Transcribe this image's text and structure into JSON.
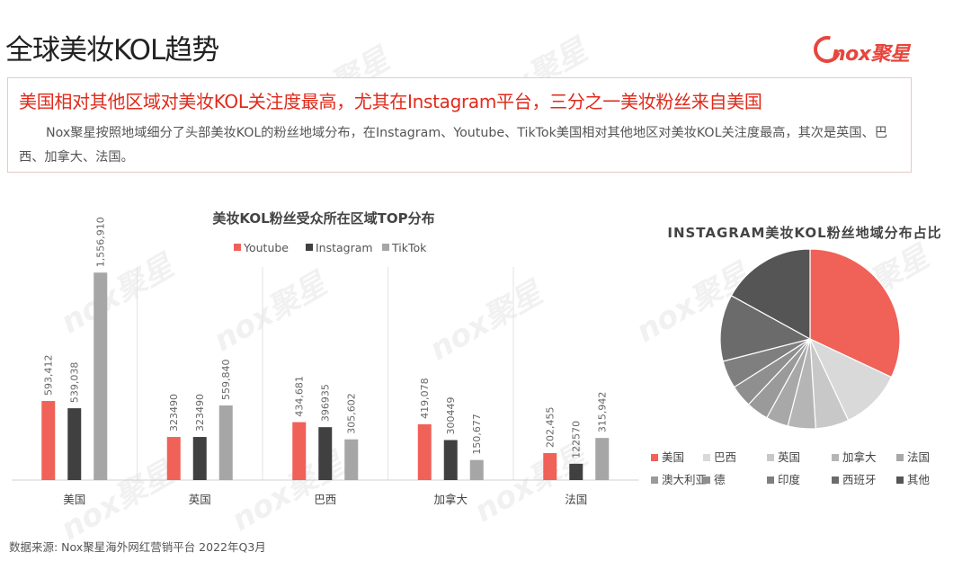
{
  "page": {
    "title": "全球美妆KOL趋势",
    "logo_text": "nox聚星",
    "watermark_text": "nox聚星"
  },
  "info": {
    "headline": "美国相对其他区域对美妆KOL关注度最高，尤其在Instagram平台，三分之一美妆粉丝来自美国",
    "description": "Nox聚星按照地域细分了头部美妆KOL的粉丝地域分布，在Instagram、Youtube、TikTok美国相对其他地区对美妆KOL关注度最高，其次是英国、巴西、加拿大、法国。"
  },
  "source": "数据来源: Nox聚星海外网红营销平台 2022年Q3月",
  "chart_data": [
    {
      "type": "bar",
      "title": "美妆KOL粉丝受众所在区域TOP分布",
      "categories": [
        "美国",
        "英国",
        "巴西",
        "加拿大",
        "法国"
      ],
      "series": [
        {
          "name": "Youtube",
          "color": "#f06158",
          "values": [
            593412,
            323490,
            434681,
            419078,
            202455
          ],
          "labels": [
            "593,412",
            "323490",
            "434,681",
            "419,078",
            "202,455"
          ]
        },
        {
          "name": "Instagram",
          "color": "#404040",
          "values": [
            539038,
            323490,
            396935,
            300449,
            122570
          ],
          "labels": [
            "539,038",
            "323490",
            "396935",
            "300449",
            "122570"
          ]
        },
        {
          "name": "TikTok",
          "color": "#a6a6a6",
          "values": [
            1556910,
            559840,
            305602,
            150677,
            315942
          ],
          "labels": [
            "1,556,910",
            "559,840",
            "305,602",
            "150,677",
            "315,942"
          ]
        }
      ],
      "ylim": [
        0,
        1700000
      ],
      "legend_position": "top",
      "grid": false
    },
    {
      "type": "pie",
      "title": "INSTAGRAM美妆KOL粉丝地域分布占比",
      "labels": [
        "美国",
        "巴西",
        "英国",
        "加拿大",
        "法国",
        "澳大利亚",
        "德",
        "印度",
        "西班牙",
        "其他"
      ],
      "values": [
        32,
        11,
        6,
        5,
        4,
        4,
        4,
        5,
        12,
        17
      ],
      "colors": [
        "#f06158",
        "#d9d9d9",
        "#c8c8c8",
        "#b5b5b5",
        "#a8a8a8",
        "#9a9a9a",
        "#8f8f8f",
        "#7f7f7f",
        "#6b6b6b",
        "#555555"
      ],
      "legend_position": "bottom"
    }
  ]
}
